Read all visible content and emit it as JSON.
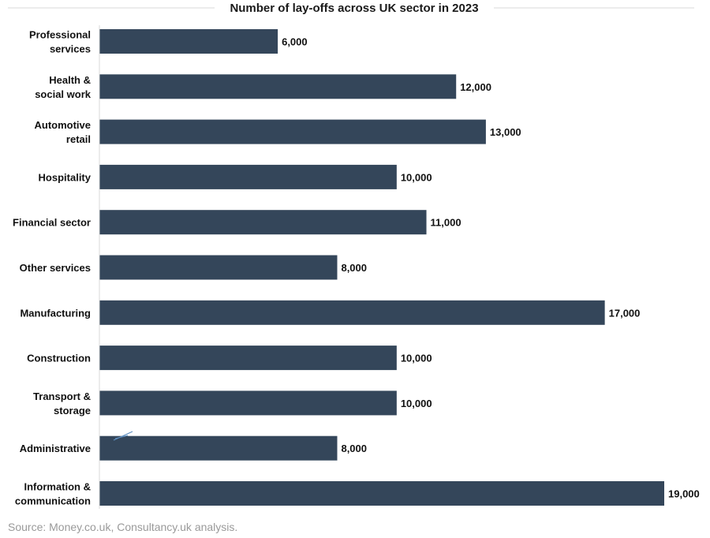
{
  "chart_data": {
    "type": "bar",
    "orientation": "horizontal",
    "title": "Number of lay-offs across UK sector in 2023",
    "categories": [
      [
        "Professional",
        "services"
      ],
      [
        "Health &",
        "social work"
      ],
      [
        "Automotive",
        "retail"
      ],
      [
        "Hospitality"
      ],
      [
        "Financial sector"
      ],
      [
        "Other services"
      ],
      [
        "Manufacturing"
      ],
      [
        "Construction"
      ],
      [
        "Transport &",
        "storage"
      ],
      [
        "Administrative"
      ],
      [
        "Information &",
        "communication"
      ]
    ],
    "values": [
      6000,
      12000,
      13000,
      10000,
      11000,
      8000,
      17000,
      10000,
      10000,
      8000,
      19000
    ],
    "value_labels": [
      "6,000",
      "12,000",
      "13,000",
      "10,000",
      "11,000",
      "8,000",
      "17,000",
      "10,000",
      "10,000",
      "8,000",
      "19,000"
    ],
    "xlim": [
      0,
      19000
    ],
    "bar_color": "#34465a",
    "grid": false,
    "legend": "none"
  },
  "source": "Source: Money.co.uk, Consultancy.uk analysis."
}
